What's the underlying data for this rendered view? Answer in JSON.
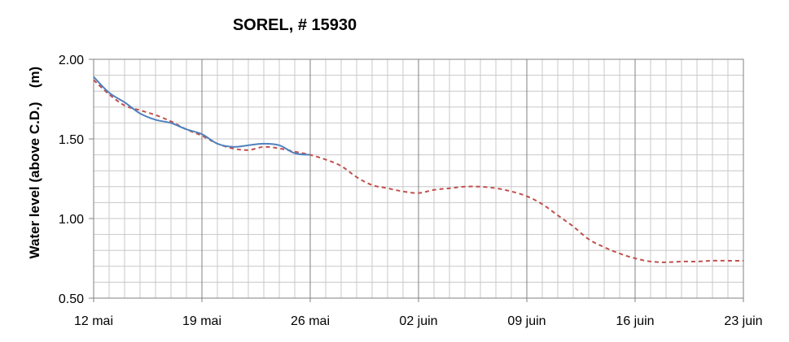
{
  "chart_data": {
    "type": "line",
    "title": "SOREL, # 15930",
    "ylabel": "Water level (above C.D.)",
    "yunit": "(m)",
    "xlabel": "",
    "ylim": [
      0.5,
      2.0
    ],
    "y_ticks": [
      "0.50",
      "1.00",
      "1.50",
      "2.00"
    ],
    "x_ticks": [
      "12 mai",
      "19 mai",
      "26 mai",
      "02 juin",
      "09 juin",
      "16 juin",
      "23 juin"
    ],
    "grid": true,
    "legend": "none",
    "series": [
      {
        "style": "solid",
        "color": "#4F81BD",
        "x": [
          "2013-05-12",
          "2013-05-13",
          "2013-05-14",
          "2013-05-15",
          "2013-05-16",
          "2013-05-17",
          "2013-05-18",
          "2013-05-19",
          "2013-05-20",
          "2013-05-21",
          "2013-05-22",
          "2013-05-23",
          "2013-05-24",
          "2013-05-25",
          "2013-05-26"
        ],
        "values": [
          1.89,
          1.79,
          1.73,
          1.66,
          1.62,
          1.6,
          1.56,
          1.53,
          1.47,
          1.45,
          1.46,
          1.47,
          1.46,
          1.41,
          1.4
        ]
      },
      {
        "style": "dashed",
        "color": "#C0504D",
        "x": [
          "2013-05-12",
          "2013-05-13",
          "2013-05-14",
          "2013-05-15",
          "2013-05-16",
          "2013-05-17",
          "2013-05-18",
          "2013-05-19",
          "2013-05-20",
          "2013-05-21",
          "2013-05-22",
          "2013-05-23",
          "2013-05-24",
          "2013-05-25",
          "2013-05-26",
          "2013-05-27",
          "2013-05-28",
          "2013-05-29",
          "2013-05-30",
          "2013-05-31",
          "2013-06-01",
          "2013-06-02",
          "2013-06-03",
          "2013-06-04",
          "2013-06-05",
          "2013-06-06",
          "2013-06-07",
          "2013-06-08",
          "2013-06-09",
          "2013-06-10",
          "2013-06-11",
          "2013-06-12",
          "2013-06-13",
          "2013-06-14",
          "2013-06-15",
          "2013-06-16",
          "2013-06-17",
          "2013-06-18",
          "2013-06-19",
          "2013-06-20",
          "2013-06-21",
          "2013-06-22",
          "2013-06-23"
        ],
        "values": [
          1.87,
          1.78,
          1.71,
          1.68,
          1.65,
          1.61,
          1.56,
          1.52,
          1.47,
          1.44,
          1.43,
          1.45,
          1.44,
          1.42,
          1.4,
          1.37,
          1.33,
          1.26,
          1.21,
          1.19,
          1.17,
          1.16,
          1.18,
          1.19,
          1.2,
          1.2,
          1.19,
          1.17,
          1.14,
          1.09,
          1.02,
          0.95,
          0.87,
          0.82,
          0.78,
          0.75,
          0.73,
          0.725,
          0.73,
          0.73,
          0.735,
          0.735,
          0.735
        ]
      }
    ]
  }
}
